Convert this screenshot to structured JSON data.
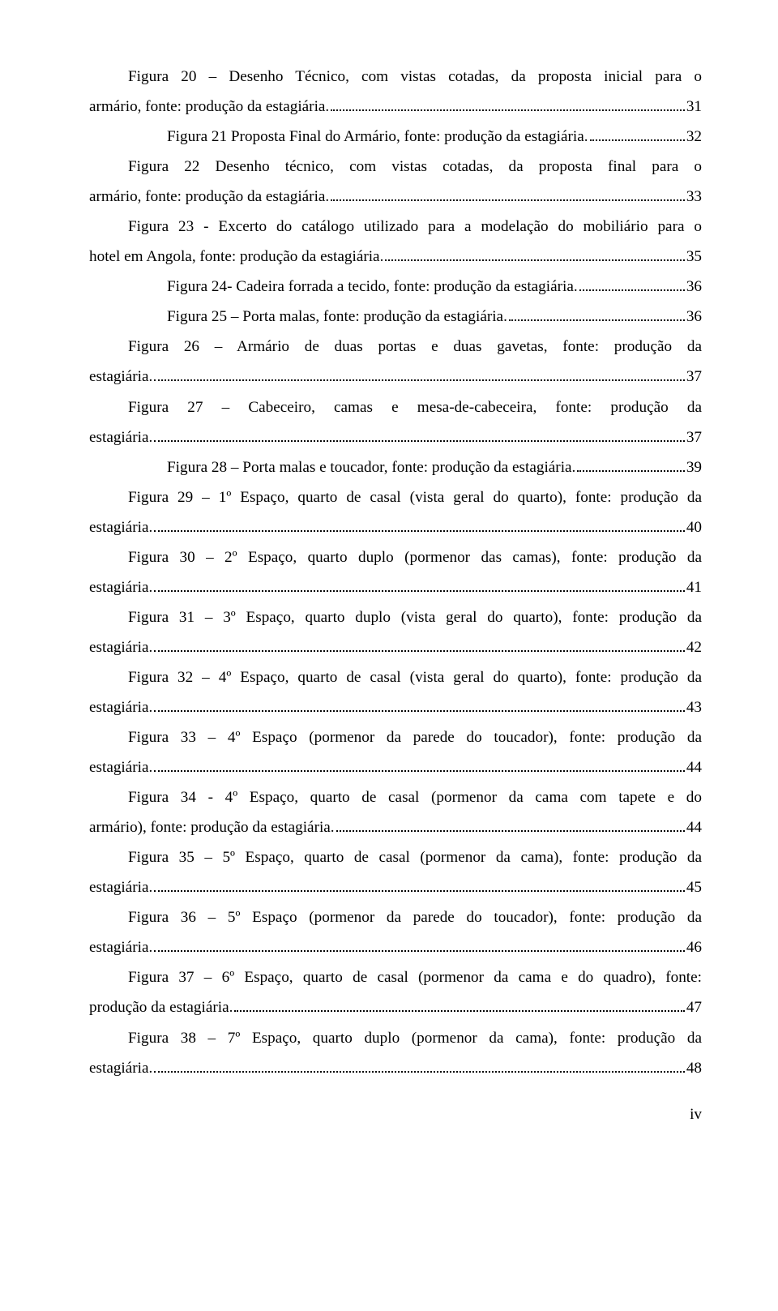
{
  "entries": [
    {
      "lines": [
        {
          "t": "Figura 20 – Desenho Técnico, com vistas cotadas, da proposta inicial para o",
          "first": true
        },
        {
          "t": "armário, fonte: produção da estagiária.",
          "p": "31"
        }
      ]
    },
    {
      "lines": [
        {
          "t": "Figura 21 Proposta Final do Armário, fonte: produção da estagiária.",
          "first": true,
          "p": "32"
        }
      ]
    },
    {
      "lines": [
        {
          "t": "Figura 22 Desenho técnico, com vistas cotadas, da proposta final para o",
          "first": true
        },
        {
          "t": "armário, fonte: produção da estagiária.",
          "p": "33"
        }
      ]
    },
    {
      "lines": [
        {
          "t": "Figura 23 - Excerto do catálogo utilizado para a modelação do mobiliário para o",
          "first": true
        },
        {
          "t": "hotel em Angola, fonte: produção da estagiária.",
          "p": "35"
        }
      ]
    },
    {
      "lines": [
        {
          "t": "Figura 24- Cadeira forrada a tecido, fonte: produção da estagiária.",
          "first": true,
          "p": "36"
        }
      ]
    },
    {
      "lines": [
        {
          "t": "Figura 25 – Porta malas, fonte: produção da estagiária.",
          "first": true,
          "p": "36"
        }
      ]
    },
    {
      "lines": [
        {
          "t": "Figura 26 – Armário de duas portas e duas gavetas, fonte: produção da",
          "first": true
        },
        {
          "t": "estagiária.",
          "p": "37"
        }
      ]
    },
    {
      "lines": [
        {
          "t": "Figura 27 – Cabeceiro, camas e mesa-de-cabeceira, fonte: produção da",
          "first": true
        },
        {
          "t": "estagiária.",
          "p": "37"
        }
      ]
    },
    {
      "lines": [
        {
          "t": "Figura 28 – Porta malas e toucador, fonte: produção da estagiária.",
          "first": true,
          "p": "39"
        }
      ]
    },
    {
      "lines": [
        {
          "t": "Figura 29 – 1º Espaço, quarto de casal (vista geral do quarto), fonte: produção da",
          "first": true
        },
        {
          "t": "estagiária.",
          "p": "40"
        }
      ]
    },
    {
      "lines": [
        {
          "t": "Figura 30 – 2º Espaço, quarto duplo (pormenor das camas), fonte: produção da",
          "first": true
        },
        {
          "t": "estagiária.",
          "p": "41"
        }
      ]
    },
    {
      "lines": [
        {
          "t": "Figura 31 – 3º Espaço, quarto duplo (vista geral do quarto), fonte: produção da",
          "first": true
        },
        {
          "t": "estagiária.",
          "p": "42"
        }
      ]
    },
    {
      "lines": [
        {
          "t": "Figura 32 – 4º Espaço, quarto de casal (vista geral do quarto), fonte: produção da",
          "first": true
        },
        {
          "t": "estagiária.",
          "p": "43"
        }
      ]
    },
    {
      "lines": [
        {
          "t": "Figura 33 – 4º Espaço (pormenor da parede do toucador), fonte: produção da",
          "first": true
        },
        {
          "t": "estagiária.",
          "p": "44"
        }
      ]
    },
    {
      "lines": [
        {
          "t": "Figura 34 - 4º Espaço, quarto de casal (pormenor da cama com tapete e do",
          "first": true
        },
        {
          "t": "armário), fonte: produção da estagiária.",
          "p": "44"
        }
      ]
    },
    {
      "lines": [
        {
          "t": "Figura 35 – 5º Espaço, quarto de casal (pormenor da cama), fonte: produção da",
          "first": true
        },
        {
          "t": "estagiária.",
          "p": "45"
        }
      ]
    },
    {
      "lines": [
        {
          "t": "Figura 36 – 5º Espaço (pormenor da parede do toucador), fonte: produção da",
          "first": true
        },
        {
          "t": "estagiária.",
          "p": "46"
        }
      ]
    },
    {
      "lines": [
        {
          "t": "Figura 37 – 6º Espaço, quarto de casal (pormenor da cama e do quadro), fonte:",
          "first": true
        },
        {
          "t": "produção da estagiária.",
          "p": "47"
        }
      ]
    },
    {
      "lines": [
        {
          "t": "Figura 38 – 7º Espaço, quarto duplo (pormenor da cama), fonte: produção da",
          "first": true
        },
        {
          "t": "estagiária.",
          "p": "48"
        }
      ]
    }
  ],
  "pageNumber": "iv"
}
